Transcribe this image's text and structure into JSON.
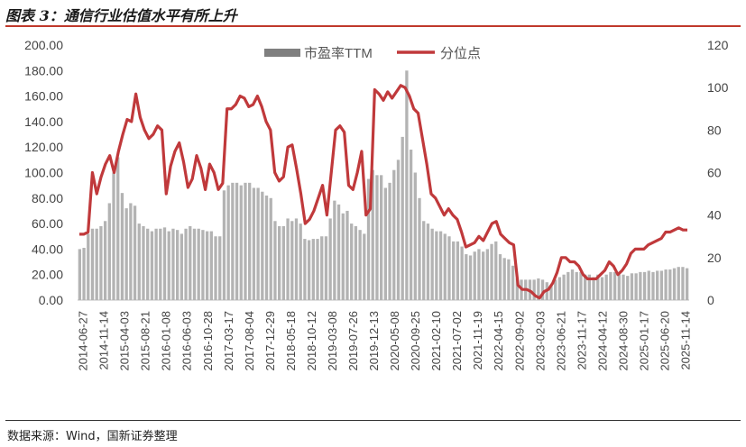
{
  "figure": {
    "title": "图表 3：通信行业估值水平有所上升",
    "source": "数据来源：Wind，国新证券整理"
  },
  "chart_data": {
    "type": "bar+line",
    "x_tick_labels": [
      "2014-06-27",
      "2014-11-14",
      "2015-04-03",
      "2015-08-21",
      "2016-01-08",
      "2016-06-03",
      "2016-10-28",
      "2017-03-17",
      "2017-08-04",
      "2017-12-29",
      "2018-05-18",
      "2018-10-12",
      "2019-03-08",
      "2019-07-26",
      "2019-12-13",
      "2020-05-08",
      "2020-09-25",
      "2021-02-10",
      "2021-07-02",
      "2021-11-19",
      "2022-04-15",
      "2022-09-02",
      "2023-02-03",
      "2023-06-21",
      "2023-11-17",
      "2024-04-12",
      "2024-08-30",
      "2025-01-17",
      "2025-06-20",
      "2025-11-14"
    ],
    "left_axis": {
      "ylim": [
        0,
        200
      ],
      "ticks": [
        "0.00",
        "20.00",
        "40.00",
        "60.00",
        "80.00",
        "100.00",
        "120.00",
        "140.00",
        "160.00",
        "180.00",
        "200.00"
      ]
    },
    "right_axis": {
      "ylim": [
        0,
        120
      ],
      "ticks": [
        "0",
        "20",
        "40",
        "60",
        "80",
        "100",
        "120"
      ]
    },
    "legend": [
      "市盈率TTM",
      "分位点"
    ],
    "colors": {
      "bars": "#b3b3b3",
      "line": "#c0393b"
    },
    "series": [
      {
        "name": "市盈率TTM",
        "axis": "left",
        "values": [
          40,
          41,
          52,
          56,
          56,
          58,
          62,
          76,
          100,
          112,
          84,
          72,
          76,
          74,
          60,
          58,
          56,
          54,
          56,
          56,
          57,
          54,
          56,
          55,
          52,
          56,
          58,
          56,
          56,
          55,
          54,
          54,
          50,
          50,
          86,
          90,
          92,
          92,
          90,
          92,
          92,
          88,
          88,
          85,
          82,
          80,
          62,
          58,
          58,
          64,
          62,
          64,
          60,
          48,
          47,
          48,
          48,
          50,
          50,
          64,
          78,
          75,
          68,
          70,
          60,
          58,
          55,
          52,
          95,
          102,
          98,
          98,
          88,
          92,
          102,
          110,
          128,
          180,
          118,
          100,
          80,
          62,
          60,
          56,
          54,
          54,
          52,
          50,
          46,
          46,
          42,
          36,
          35,
          38,
          40,
          38,
          40,
          44,
          46,
          36,
          33,
          32,
          27,
          17,
          16,
          16,
          16,
          16,
          17,
          16,
          14,
          12,
          16,
          18,
          20,
          22,
          24,
          22,
          22,
          20,
          20,
          18,
          20,
          18,
          20,
          22,
          22,
          20,
          20,
          19,
          21,
          21,
          22,
          22,
          23,
          22,
          23,
          23,
          24,
          24,
          25,
          26,
          26,
          25
        ]
      },
      {
        "name": "分位点",
        "axis": "right",
        "values": [
          31,
          31,
          32,
          60,
          50,
          58,
          64,
          68,
          60,
          70,
          78,
          85,
          84,
          97,
          86,
          80,
          76,
          78,
          82,
          80,
          50,
          63,
          70,
          74,
          65,
          53,
          57,
          68,
          62,
          52,
          64,
          60,
          52,
          55,
          90,
          90,
          92,
          96,
          95,
          91,
          92,
          96,
          91,
          84,
          80,
          60,
          56,
          58,
          72,
          73,
          62,
          50,
          36,
          38,
          42,
          48,
          54,
          40,
          60,
          80,
          82,
          79,
          54,
          52,
          60,
          70,
          40,
          43,
          99,
          97,
          94,
          98,
          95,
          98,
          101,
          100,
          96,
          90,
          88,
          76,
          64,
          50,
          48,
          44,
          40,
          43,
          40,
          38,
          32,
          25,
          26,
          27,
          30,
          28,
          32,
          36,
          37,
          31,
          29,
          27,
          26,
          7,
          5,
          5,
          4,
          2,
          1,
          4,
          5,
          8,
          13,
          20,
          20,
          18,
          18,
          16,
          12,
          10,
          10,
          10,
          12,
          14,
          18,
          16,
          12,
          14,
          17,
          22,
          24,
          24,
          24,
          26,
          27,
          28,
          29,
          32,
          32,
          33,
          34,
          33,
          33
        ]
      }
    ]
  }
}
